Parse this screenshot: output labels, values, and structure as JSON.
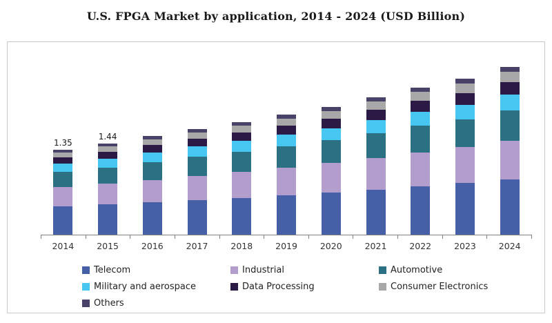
{
  "title": "U.S. FPGA Market by application, 2014 - 2024 (USD Billion)",
  "chart_data": {
    "type": "bar",
    "stacked": true,
    "title": "U.S. FPGA Market by application, 2014 - 2024 (USD Billion)",
    "xlabel": "",
    "ylabel": "",
    "ylim": [
      0,
      2.8
    ],
    "grid": false,
    "legend_position": "bottom",
    "categories": [
      "2014",
      "2015",
      "2016",
      "2017",
      "2018",
      "2019",
      "2020",
      "2021",
      "2022",
      "2023",
      "2024"
    ],
    "series": [
      {
        "name": "Telecom",
        "color": "#4660a8",
        "values": [
          0.45,
          0.48,
          0.51,
          0.55,
          0.58,
          0.62,
          0.67,
          0.71,
          0.76,
          0.82,
          0.87
        ]
      },
      {
        "name": "Industrial",
        "color": "#b29dcc",
        "values": [
          0.31,
          0.33,
          0.35,
          0.38,
          0.41,
          0.44,
          0.47,
          0.5,
          0.53,
          0.57,
          0.61
        ]
      },
      {
        "name": "Automotive",
        "color": "#2b7083",
        "values": [
          0.24,
          0.25,
          0.28,
          0.3,
          0.32,
          0.34,
          0.36,
          0.39,
          0.42,
          0.44,
          0.48
        ]
      },
      {
        "name": "Military and aerospace",
        "color": "#46c6f0",
        "values": [
          0.13,
          0.14,
          0.15,
          0.16,
          0.17,
          0.18,
          0.19,
          0.21,
          0.22,
          0.23,
          0.25
        ]
      },
      {
        "name": "Data Processing",
        "color": "#2a1a45",
        "values": [
          0.1,
          0.11,
          0.12,
          0.12,
          0.13,
          0.14,
          0.15,
          0.16,
          0.17,
          0.19,
          0.2
        ]
      },
      {
        "name": "Consumer Electronics",
        "color": "#a8a8a8",
        "values": [
          0.08,
          0.09,
          0.09,
          0.1,
          0.11,
          0.11,
          0.12,
          0.13,
          0.14,
          0.15,
          0.16
        ]
      },
      {
        "name": "Others",
        "color": "#4a4169",
        "values": [
          0.04,
          0.04,
          0.05,
          0.05,
          0.05,
          0.06,
          0.06,
          0.07,
          0.07,
          0.08,
          0.08
        ]
      }
    ],
    "bar_labels": {
      "2014": "1.35",
      "2015": "1.44"
    },
    "totals": [
      1.35,
      1.44,
      1.55,
      1.66,
      1.77,
      1.89,
      2.02,
      2.17,
      2.31,
      2.48,
      2.65
    ]
  }
}
